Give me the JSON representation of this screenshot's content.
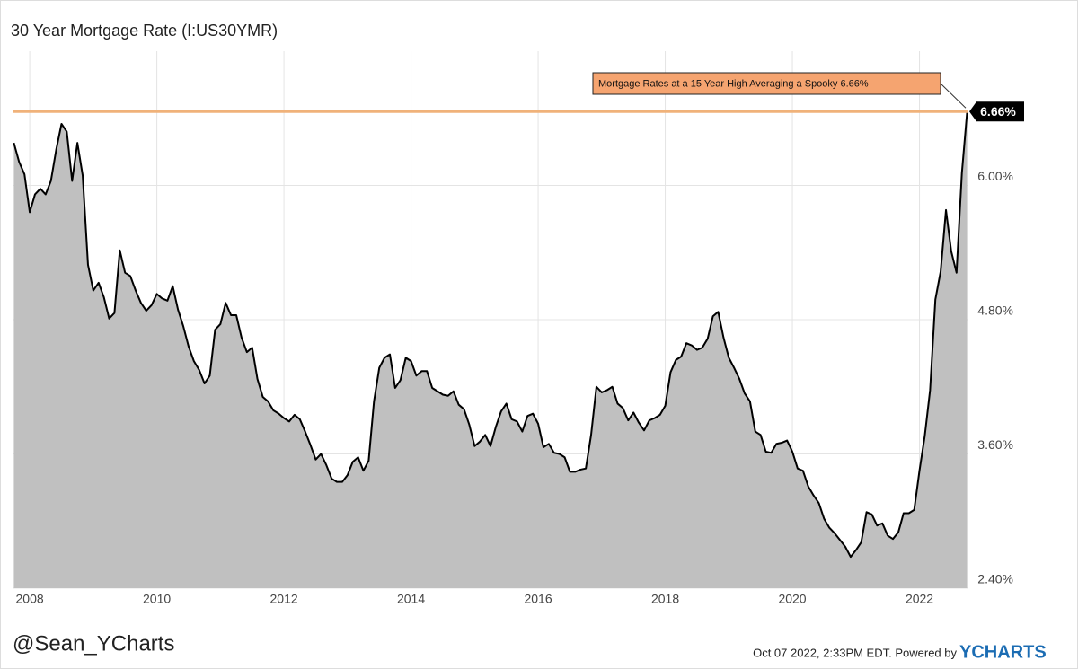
{
  "chart_data": {
    "type": "area",
    "title": "30 Year Mortgage Rate (I:US30YMR)",
    "x": [
      2007.75,
      2007.833,
      2007.917,
      2008,
      2008.083,
      2008.167,
      2008.25,
      2008.333,
      2008.417,
      2008.5,
      2008.583,
      2008.667,
      2008.75,
      2008.833,
      2008.917,
      2009,
      2009.083,
      2009.167,
      2009.25,
      2009.333,
      2009.417,
      2009.5,
      2009.583,
      2009.667,
      2009.75,
      2009.833,
      2009.917,
      2010,
      2010.083,
      2010.167,
      2010.25,
      2010.333,
      2010.417,
      2010.5,
      2010.583,
      2010.667,
      2010.75,
      2010.833,
      2010.917,
      2011,
      2011.083,
      2011.167,
      2011.25,
      2011.333,
      2011.417,
      2011.5,
      2011.583,
      2011.667,
      2011.75,
      2011.833,
      2011.917,
      2012,
      2012.083,
      2012.167,
      2012.25,
      2012.333,
      2012.417,
      2012.5,
      2012.583,
      2012.667,
      2012.75,
      2012.833,
      2012.917,
      2013,
      2013.083,
      2013.167,
      2013.25,
      2013.333,
      2013.417,
      2013.5,
      2013.583,
      2013.667,
      2013.75,
      2013.833,
      2013.917,
      2014,
      2014.083,
      2014.167,
      2014.25,
      2014.333,
      2014.417,
      2014.5,
      2014.583,
      2014.667,
      2014.75,
      2014.833,
      2014.917,
      2015,
      2015.083,
      2015.167,
      2015.25,
      2015.333,
      2015.417,
      2015.5,
      2015.583,
      2015.667,
      2015.75,
      2015.833,
      2015.917,
      2016,
      2016.083,
      2016.167,
      2016.25,
      2016.333,
      2016.417,
      2016.5,
      2016.583,
      2016.667,
      2016.75,
      2016.833,
      2016.917,
      2017,
      2017.083,
      2017.167,
      2017.25,
      2017.333,
      2017.417,
      2017.5,
      2017.583,
      2017.667,
      2017.75,
      2017.833,
      2017.917,
      2018,
      2018.083,
      2018.167,
      2018.25,
      2018.333,
      2018.417,
      2018.5,
      2018.583,
      2018.667,
      2018.75,
      2018.833,
      2018.917,
      2019,
      2019.083,
      2019.167,
      2019.25,
      2019.333,
      2019.417,
      2019.5,
      2019.583,
      2019.667,
      2019.75,
      2019.833,
      2019.917,
      2020,
      2020.083,
      2020.167,
      2020.25,
      2020.333,
      2020.417,
      2020.5,
      2020.583,
      2020.667,
      2020.75,
      2020.833,
      2020.917,
      2021,
      2021.083,
      2021.167,
      2021.25,
      2021.333,
      2021.417,
      2021.5,
      2021.583,
      2021.667,
      2021.75,
      2021.833,
      2021.917,
      2022,
      2022.083,
      2022.167,
      2022.25,
      2022.333,
      2022.417,
      2022.5,
      2022.583,
      2022.667,
      2022.75
    ],
    "series": [
      {
        "name": "30 Year Mortgage Rate",
        "color": "#000000",
        "fill": "#c0c0c0",
        "values": [
          6.38,
          6.21,
          6.1,
          5.76,
          5.92,
          5.97,
          5.92,
          6.04,
          6.32,
          6.55,
          6.48,
          6.04,
          6.38,
          6.09,
          5.29,
          5.06,
          5.13,
          5.0,
          4.81,
          4.86,
          5.42,
          5.22,
          5.19,
          5.06,
          4.95,
          4.88,
          4.93,
          5.03,
          4.99,
          4.97,
          5.1,
          4.89,
          4.74,
          4.56,
          4.43,
          4.35,
          4.23,
          4.3,
          4.71,
          4.76,
          4.95,
          4.84,
          4.84,
          4.64,
          4.51,
          4.55,
          4.27,
          4.11,
          4.07,
          3.99,
          3.96,
          3.92,
          3.89,
          3.95,
          3.91,
          3.8,
          3.68,
          3.55,
          3.6,
          3.5,
          3.38,
          3.35,
          3.35,
          3.41,
          3.53,
          3.57,
          3.45,
          3.54,
          4.07,
          4.37,
          4.46,
          4.49,
          4.19,
          4.26,
          4.46,
          4.43,
          4.3,
          4.34,
          4.34,
          4.19,
          4.16,
          4.13,
          4.12,
          4.16,
          4.04,
          4.0,
          3.86,
          3.67,
          3.71,
          3.77,
          3.67,
          3.84,
          3.98,
          4.05,
          3.91,
          3.89,
          3.8,
          3.94,
          3.96,
          3.87,
          3.66,
          3.69,
          3.61,
          3.6,
          3.57,
          3.44,
          3.44,
          3.46,
          3.47,
          3.77,
          4.2,
          4.15,
          4.17,
          4.2,
          4.05,
          4.01,
          3.9,
          3.97,
          3.88,
          3.81,
          3.9,
          3.92,
          3.95,
          4.03,
          4.33,
          4.44,
          4.47,
          4.59,
          4.57,
          4.53,
          4.55,
          4.63,
          4.83,
          4.87,
          4.64,
          4.46,
          4.37,
          4.27,
          4.14,
          4.07,
          3.8,
          3.77,
          3.62,
          3.61,
          3.69,
          3.7,
          3.72,
          3.62,
          3.47,
          3.45,
          3.31,
          3.23,
          3.16,
          3.02,
          2.94,
          2.89,
          2.83,
          2.77,
          2.68,
          2.74,
          2.81,
          3.08,
          3.06,
          2.96,
          2.98,
          2.87,
          2.84,
          2.9,
          3.07,
          3.07,
          3.1,
          3.45,
          3.76,
          4.17,
          4.98,
          5.23,
          5.78,
          5.41,
          5.22,
          6.11,
          6.66
        ]
      }
    ],
    "xlim": [
      2007.73,
      2022.77
    ],
    "xticks": [
      2008,
      2010,
      2012,
      2014,
      2016,
      2018,
      2020,
      2022
    ],
    "ylim": [
      2.4,
      7.2
    ],
    "yticks": [
      {
        "value": 2.4,
        "label": "2.40%"
      },
      {
        "value": 3.6,
        "label": "3.60%"
      },
      {
        "value": 4.8,
        "label": "4.80%"
      },
      {
        "value": 6.0,
        "label": "6.00%"
      }
    ],
    "grid": true,
    "annotation": {
      "text": "Mortgage Rates at a 15 Year High Averaging a Spooky 6.66%",
      "value": 6.66,
      "color": "#f5a470",
      "line_color": "#f0b27a"
    },
    "end_label": {
      "value": 6.66,
      "label": "6.66%"
    }
  },
  "footer": {
    "handle": "@Sean_YCharts",
    "timestamp": "Oct 07 2022, 2:33PM EDT.  Powered by",
    "brand": "YCHARTS"
  }
}
